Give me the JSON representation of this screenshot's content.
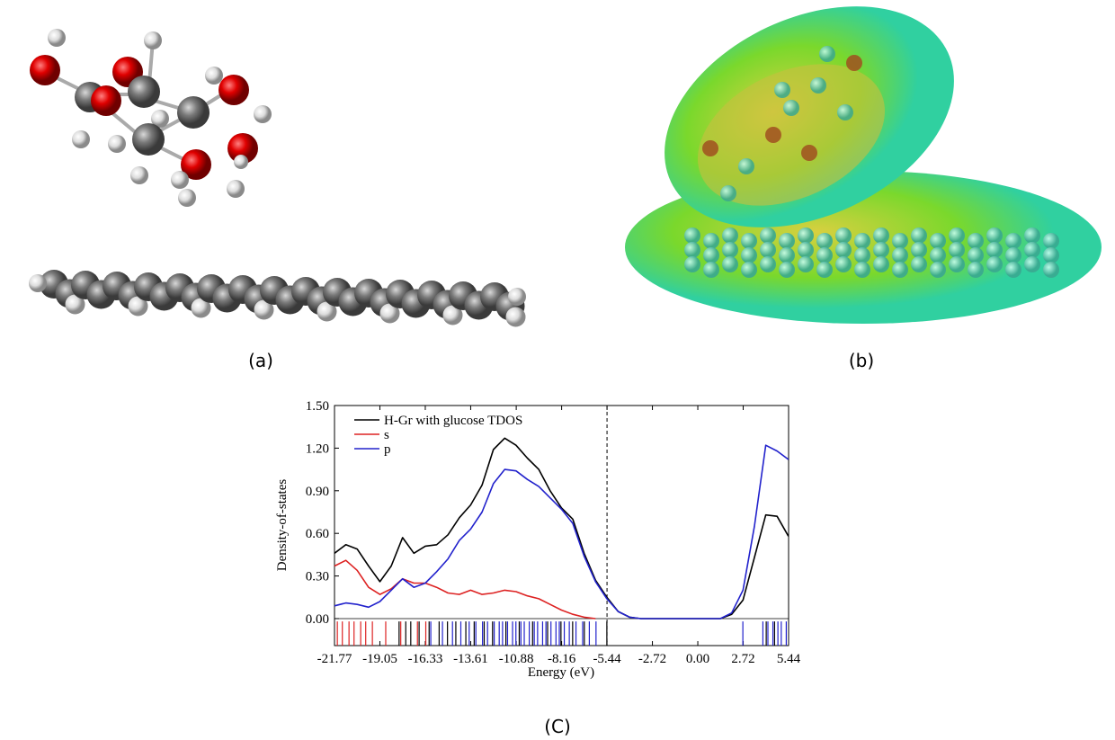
{
  "figure": {
    "labels": [
      "(a)",
      "(b)",
      "(C)"
    ]
  },
  "chart_data": {
    "type": "line",
    "xlabel": "Energy (eV)",
    "ylabel": "Density-of-states",
    "x": [
      -21.77,
      -21.09,
      -20.41,
      -19.73,
      -19.05,
      -18.37,
      -17.69,
      -17.01,
      -16.33,
      -15.65,
      -14.97,
      -14.29,
      -13.61,
      -12.93,
      -12.25,
      -11.57,
      -10.89,
      -10.21,
      -9.53,
      -8.85,
      -8.17,
      -7.49,
      -6.81,
      -6.13,
      -5.45,
      -4.77,
      -4.09,
      -3.41,
      -2.73,
      -2.05,
      -1.37,
      -0.69,
      -0.01,
      0.67,
      1.35,
      2.03,
      2.71,
      3.39,
      4.07,
      4.75,
      5.43
    ],
    "series": [
      {
        "name": "H-Gr with glucose TDOS",
        "color": "#000000",
        "values": [
          0.46,
          0.52,
          0.49,
          0.37,
          0.26,
          0.37,
          0.57,
          0.46,
          0.51,
          0.52,
          0.59,
          0.71,
          0.8,
          0.94,
          1.19,
          1.27,
          1.22,
          1.13,
          1.05,
          0.9,
          0.78,
          0.7,
          0.46,
          0.27,
          0.15,
          0.05,
          0.01,
          0,
          0,
          0,
          0,
          0,
          0,
          0,
          0,
          0.03,
          0.13,
          0.43,
          0.73,
          0.72,
          0.58
        ]
      },
      {
        "name": "s",
        "color": "#dd2222",
        "values": [
          0.37,
          0.41,
          0.34,
          0.22,
          0.17,
          0.21,
          0.28,
          0.25,
          0.25,
          0.22,
          0.18,
          0.17,
          0.2,
          0.17,
          0.18,
          0.2,
          0.19,
          0.16,
          0.14,
          0.1,
          0.06,
          0.03,
          0.01,
          0,
          null,
          null,
          null,
          null,
          null,
          null,
          null,
          null,
          null,
          null,
          null,
          null,
          null,
          null,
          null,
          null,
          null
        ]
      },
      {
        "name": "p",
        "color": "#2222cc",
        "values": [
          0.09,
          0.11,
          0.1,
          0.08,
          0.12,
          0.2,
          0.28,
          0.22,
          0.25,
          0.33,
          0.42,
          0.55,
          0.63,
          0.75,
          0.95,
          1.05,
          1.04,
          0.98,
          0.93,
          0.85,
          0.77,
          0.67,
          0.44,
          0.26,
          0.14,
          0.05,
          0.01,
          0,
          0,
          0,
          0,
          0,
          0,
          0,
          0,
          0.04,
          0.2,
          0.65,
          1.22,
          1.18,
          1.12
        ]
      }
    ],
    "sticks": [
      {
        "color": "#dd2222",
        "x": [
          -21.6,
          -21.3,
          -20.9,
          -20.6,
          -20.2,
          -19.9,
          -19.5,
          -18.7,
          -17.8,
          -16.8,
          -16.3
        ]
      },
      {
        "color": "#000000",
        "x": [
          -17.9,
          -17.5,
          -17.2,
          -16.7,
          -16.1,
          -15.5,
          -15.0,
          -14.5,
          -13.9,
          -13.4,
          -12.8,
          -12.3,
          -11.5,
          -10.7,
          -9.9,
          -9.0,
          -8.2,
          -7.5,
          -6.8,
          -5.45,
          4.1,
          4.6
        ]
      },
      {
        "color": "#2222cc",
        "x": [
          -16.0,
          -15.3,
          -14.7,
          -14.2,
          -13.7,
          -13.3,
          -12.9,
          -12.6,
          -12.2,
          -11.9,
          -11.7,
          -11.4,
          -11.1,
          -10.9,
          -10.6,
          -10.4,
          -10.1,
          -9.8,
          -9.6,
          -9.3,
          -9.1,
          -8.8,
          -8.5,
          -8.3,
          -8.0,
          -7.7,
          -7.3,
          -6.9,
          -6.5,
          -6.1,
          2.7,
          3.9,
          4.2,
          4.5,
          4.8,
          5.0,
          5.3
        ]
      }
    ],
    "dashed_x": -5.44,
    "xlim": [
      -21.77,
      5.44
    ],
    "ylim": [
      -0.19,
      1.5
    ],
    "xticks": [
      -21.77,
      -19.05,
      -16.33,
      -13.61,
      -10.88,
      -8.16,
      -5.44,
      -2.72,
      {
        "value": 0,
        "label": "0.00"
      },
      2.72,
      5.44
    ],
    "yticks": [
      {
        "value": 0,
        "label": "0.00"
      },
      {
        "value": 0.3,
        "label": "0.30"
      },
      {
        "value": 0.6,
        "label": "0.60"
      },
      {
        "value": 0.9,
        "label": "0.90"
      },
      {
        "value": 1.2,
        "label": "1.20"
      },
      {
        "value": 1.5,
        "label": "1.50"
      }
    ],
    "legend": "upper left"
  }
}
